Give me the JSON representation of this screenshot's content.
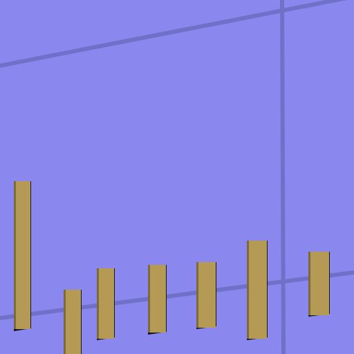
{
  "scene": {
    "background_color": "#8a88ee",
    "grid_line_color": "#6f71c8",
    "block_color": "#b49a55",
    "block_edge_color": "#7c6a3a",
    "block_shadow_color": "#151515",
    "block_count": 7
  }
}
